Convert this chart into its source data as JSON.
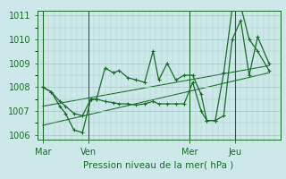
{
  "background_color": "#cce8e8",
  "plot_bg_color": "#cce8e8",
  "grid_color": "#aacccc",
  "line_color": "#1a6b2a",
  "xlabel": "Pression niveau de la mer( hPa )",
  "ylim": [
    1005.8,
    1011.2
  ],
  "yticks": [
    1006,
    1007,
    1008,
    1009,
    1010,
    1011
  ],
  "day_labels": [
    "Mar",
    "Ven",
    "Mer",
    "Jeu"
  ],
  "day_positions": [
    0,
    16,
    52,
    68
  ],
  "xlim": [
    -2,
    84
  ],
  "series1_x": [
    0,
    3,
    6,
    8,
    11,
    14,
    17,
    19,
    22,
    25,
    27,
    30,
    33,
    36,
    39,
    41,
    44,
    47,
    50,
    53,
    56,
    58,
    61,
    64,
    67,
    70,
    73,
    76,
    80
  ],
  "series1_y": [
    1008.0,
    1007.8,
    1007.4,
    1007.2,
    1006.9,
    1006.8,
    1007.5,
    1007.5,
    1008.8,
    1008.6,
    1008.7,
    1008.4,
    1008.3,
    1008.2,
    1009.5,
    1008.3,
    1009.0,
    1008.3,
    1008.5,
    1008.5,
    1007.7,
    1006.6,
    1006.6,
    1008.6,
    1011.3,
    1011.4,
    1010.0,
    1009.5,
    1008.7
  ],
  "series2_x": [
    0,
    3,
    6,
    8,
    11,
    14,
    17,
    19,
    22,
    25,
    27,
    30,
    33,
    36,
    39,
    41,
    44,
    47,
    50,
    53,
    56,
    58,
    61,
    64,
    67,
    70,
    73,
    76,
    80
  ],
  "series2_y": [
    1008.0,
    1007.8,
    1007.2,
    1006.9,
    1006.2,
    1006.1,
    1007.5,
    1007.5,
    1007.4,
    1007.35,
    1007.3,
    1007.3,
    1007.25,
    1007.3,
    1007.4,
    1007.3,
    1007.3,
    1007.3,
    1007.3,
    1008.2,
    1007.0,
    1006.6,
    1006.6,
    1006.8,
    1010.0,
    1010.8,
    1008.5,
    1010.1,
    1009.0
  ],
  "trend1_x": [
    0,
    80
  ],
  "trend1_y": [
    1007.2,
    1008.9
  ],
  "trend2_x": [
    0,
    80
  ],
  "trend2_y": [
    1006.4,
    1008.6
  ]
}
